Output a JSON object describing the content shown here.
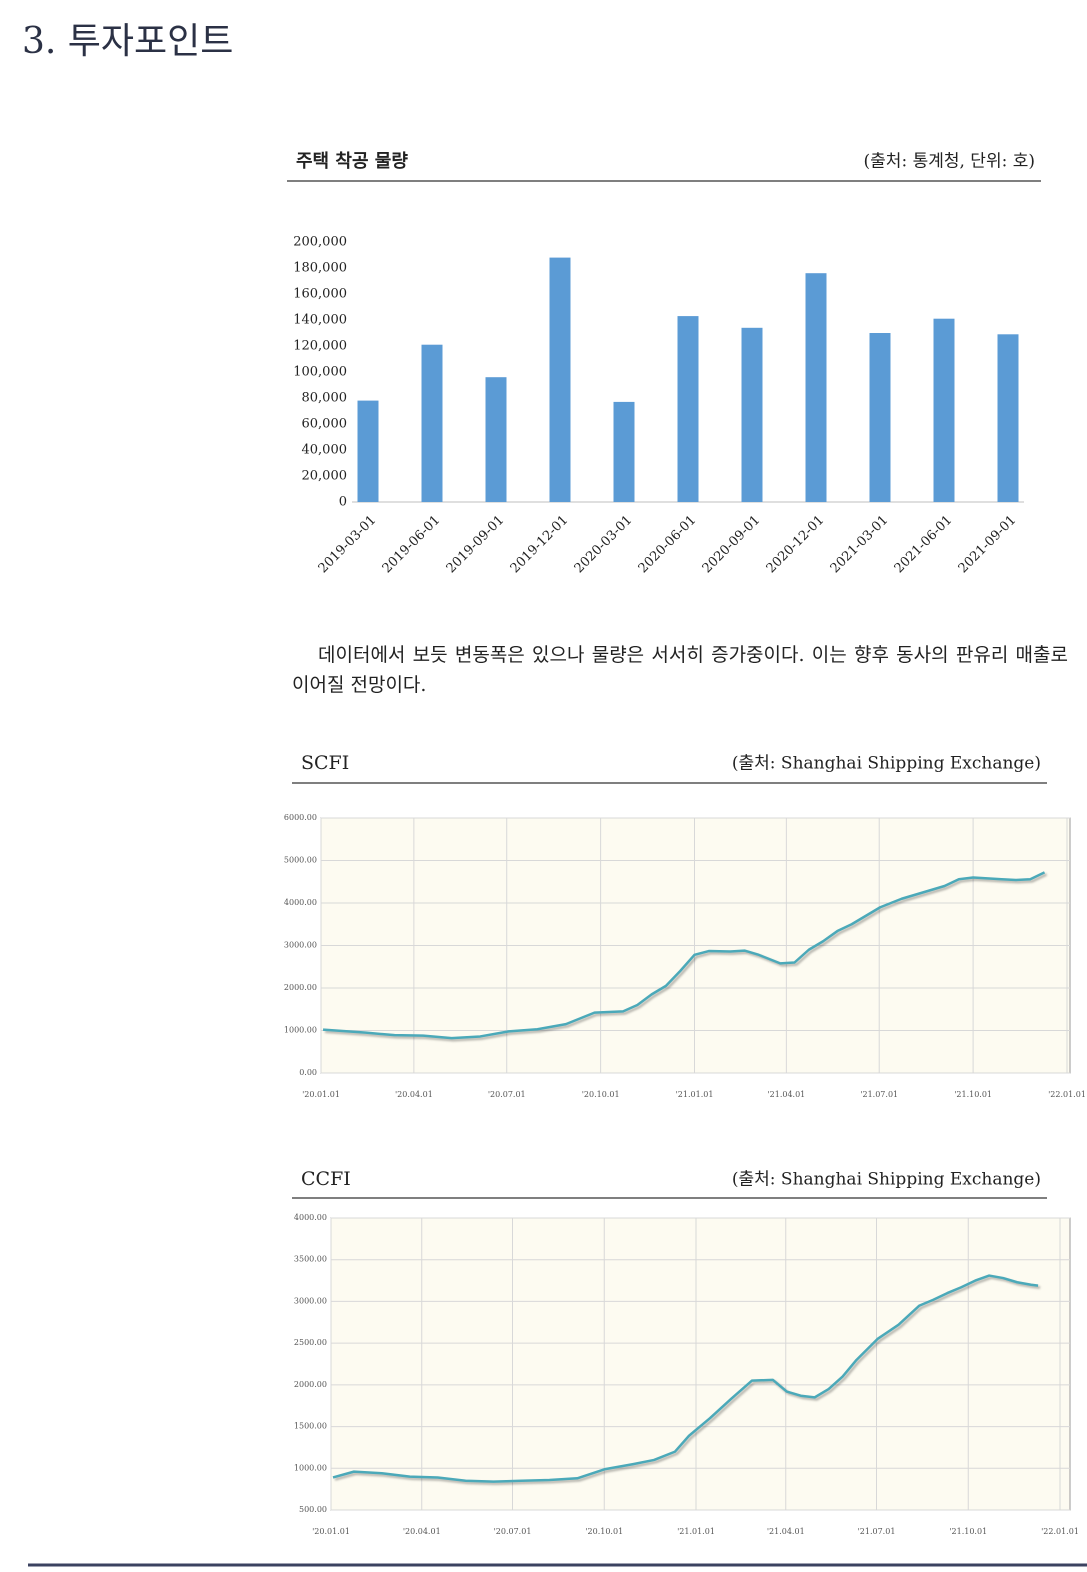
{
  "heading": "3. 투자포인트",
  "paragraph": "데이터에서 보듯 변동폭은 있으나 물량은 서서히 증가중이다. 이는 향후 동사의 판유리 매출로 이어질 전망이다.",
  "chart_data": [
    {
      "type": "bar",
      "title": "주택 착공 물량",
      "source": "(출처: 통계청, 단위: 호)",
      "categories": [
        "2019-03-01",
        "2019-06-01",
        "2019-09-01",
        "2019-12-01",
        "2020-03-01",
        "2020-06-01",
        "2020-09-01",
        "2020-12-01",
        "2021-03-01",
        "2021-06-01",
        "2021-09-01"
      ],
      "values": [
        78000,
        121000,
        96000,
        188000,
        77000,
        143000,
        134000,
        176000,
        130000,
        141000,
        129000
      ],
      "color": "#5b9bd5",
      "ylim": [
        0,
        200000
      ],
      "yticks": [
        0,
        {
          "value": 20000,
          "label": "20,000"
        },
        {
          "value": 40000,
          "label": "40,000"
        },
        {
          "value": 60000,
          "label": "60,000"
        },
        {
          "value": 80000,
          "label": "80,000"
        },
        {
          "value": 100000,
          "label": "100,000"
        },
        {
          "value": 120000,
          "label": "120,000"
        },
        {
          "value": 140000,
          "label": "140,000"
        },
        {
          "value": 160000,
          "label": "160,000"
        },
        {
          "value": 180000,
          "label": "180,000"
        },
        {
          "value": 200000,
          "label": "200,000"
        }
      ]
    },
    {
      "type": "line",
      "title": "SCFI",
      "source": "(출처: Shanghai Shipping Exchange)",
      "color": "#4ba9b9",
      "grid": true,
      "x": [
        "2020-01-03",
        "2020-02-14",
        "2020-03-13",
        "2020-04-10",
        "2020-05-08",
        "2020-06-05",
        "2020-07-03",
        "2020-07-31",
        "2020-08-28",
        "2020-09-25",
        "2020-10-23",
        "2020-11-06",
        "2020-11-20",
        "2020-12-04",
        "2020-12-18",
        "2021-01-01",
        "2021-01-15",
        "2021-02-05",
        "2021-02-19",
        "2021-03-05",
        "2021-03-26",
        "2021-04-09",
        "2021-04-23",
        "2021-05-07",
        "2021-05-21",
        "2021-06-04",
        "2021-06-18",
        "2021-07-02",
        "2021-07-23",
        "2021-08-13",
        "2021-09-03",
        "2021-09-17",
        "2021-10-01",
        "2021-10-15",
        "2021-10-29",
        "2021-11-12",
        "2021-11-26",
        "2021-12-10"
      ],
      "values": [
        1020,
        950,
        890,
        880,
        820,
        860,
        980,
        1030,
        1150,
        1420,
        1450,
        1600,
        1850,
        2050,
        2400,
        2780,
        2870,
        2860,
        2880,
        2780,
        2580,
        2600,
        2900,
        3100,
        3340,
        3500,
        3700,
        3900,
        4100,
        4250,
        4400,
        4560,
        4600,
        4580,
        4560,
        4540,
        4560,
        4720
      ],
      "xlim": [
        "2020-01-01",
        "2022-01-01"
      ],
      "xticks": [
        {
          "value": "2020-01-01",
          "label": "'20.01.01"
        },
        {
          "value": "2020-04-01",
          "label": "'20.04.01"
        },
        {
          "value": "2020-07-01",
          "label": "'20.07.01"
        },
        {
          "value": "2020-10-01",
          "label": "'20.10.01"
        },
        {
          "value": "2021-01-01",
          "label": "'21.01.01"
        },
        {
          "value": "2021-04-01",
          "label": "'21.04.01"
        },
        {
          "value": "2021-07-01",
          "label": "'21.07.01"
        },
        {
          "value": "2021-10-01",
          "label": "'21.10.01"
        },
        {
          "value": "2022-01-01",
          "label": "'22.01.01"
        }
      ],
      "ylim": [
        0,
        6000
      ],
      "yticks": [
        {
          "value": 0,
          "label": "0.00"
        },
        {
          "value": 1000,
          "label": "1000.00"
        },
        {
          "value": 2000,
          "label": "2000.00"
        },
        {
          "value": 3000,
          "label": "3000.00"
        },
        {
          "value": 4000,
          "label": "4000.00"
        },
        {
          "value": 5000,
          "label": "5000.00"
        },
        {
          "value": 6000,
          "label": "6000.00"
        }
      ]
    },
    {
      "type": "line",
      "title": "CCFI",
      "source": "(출처: Shanghai Shipping Exchange)",
      "color": "#4ba9b9",
      "grid": true,
      "x": [
        "2020-01-03",
        "2020-01-24",
        "2020-02-21",
        "2020-03-20",
        "2020-04-17",
        "2020-05-15",
        "2020-06-12",
        "2020-07-10",
        "2020-08-07",
        "2020-09-04",
        "2020-10-02",
        "2020-10-30",
        "2020-11-20",
        "2020-12-11",
        "2020-12-25",
        "2021-01-15",
        "2021-02-05",
        "2021-02-26",
        "2021-03-19",
        "2021-04-02",
        "2021-04-16",
        "2021-04-30",
        "2021-05-14",
        "2021-05-28",
        "2021-06-11",
        "2021-07-02",
        "2021-07-23",
        "2021-08-13",
        "2021-08-27",
        "2021-09-10",
        "2021-09-24",
        "2021-10-08",
        "2021-10-22",
        "2021-11-05",
        "2021-11-19",
        "2021-12-03",
        "2021-12-10"
      ],
      "values": [
        890,
        960,
        940,
        900,
        890,
        850,
        840,
        850,
        860,
        880,
        990,
        1050,
        1100,
        1200,
        1390,
        1600,
        1830,
        2050,
        2060,
        1920,
        1870,
        1850,
        1950,
        2100,
        2300,
        2550,
        2720,
        2950,
        3020,
        3100,
        3170,
        3250,
        3310,
        3280,
        3230,
        3200,
        3190
      ],
      "xlim": [
        "2020-01-01",
        "2022-01-01"
      ],
      "xticks": [
        {
          "value": "2020-01-01",
          "label": "'20.01.01"
        },
        {
          "value": "2020-04-01",
          "label": "'20.04.01"
        },
        {
          "value": "2020-07-01",
          "label": "'20.07.01"
        },
        {
          "value": "2020-10-01",
          "label": "'20.10.01"
        },
        {
          "value": "2021-01-01",
          "label": "'21.01.01"
        },
        {
          "value": "2021-04-01",
          "label": "'21.04.01"
        },
        {
          "value": "2021-07-01",
          "label": "'21.07.01"
        },
        {
          "value": "2021-10-01",
          "label": "'21.10.01"
        },
        {
          "value": "2022-01-01",
          "label": "'22.01.01"
        }
      ],
      "ylim": [
        500,
        4000
      ],
      "yticks": [
        {
          "value": 500,
          "label": "500.00"
        },
        {
          "value": 1000,
          "label": "1000.00"
        },
        {
          "value": 1500,
          "label": "1500.00"
        },
        {
          "value": 2000,
          "label": "2000.00"
        },
        {
          "value": 2500,
          "label": "2500.00"
        },
        {
          "value": 3000,
          "label": "3000.00"
        },
        {
          "value": 3500,
          "label": "3500.00"
        },
        {
          "value": 4000,
          "label": "4000.00"
        }
      ]
    }
  ]
}
